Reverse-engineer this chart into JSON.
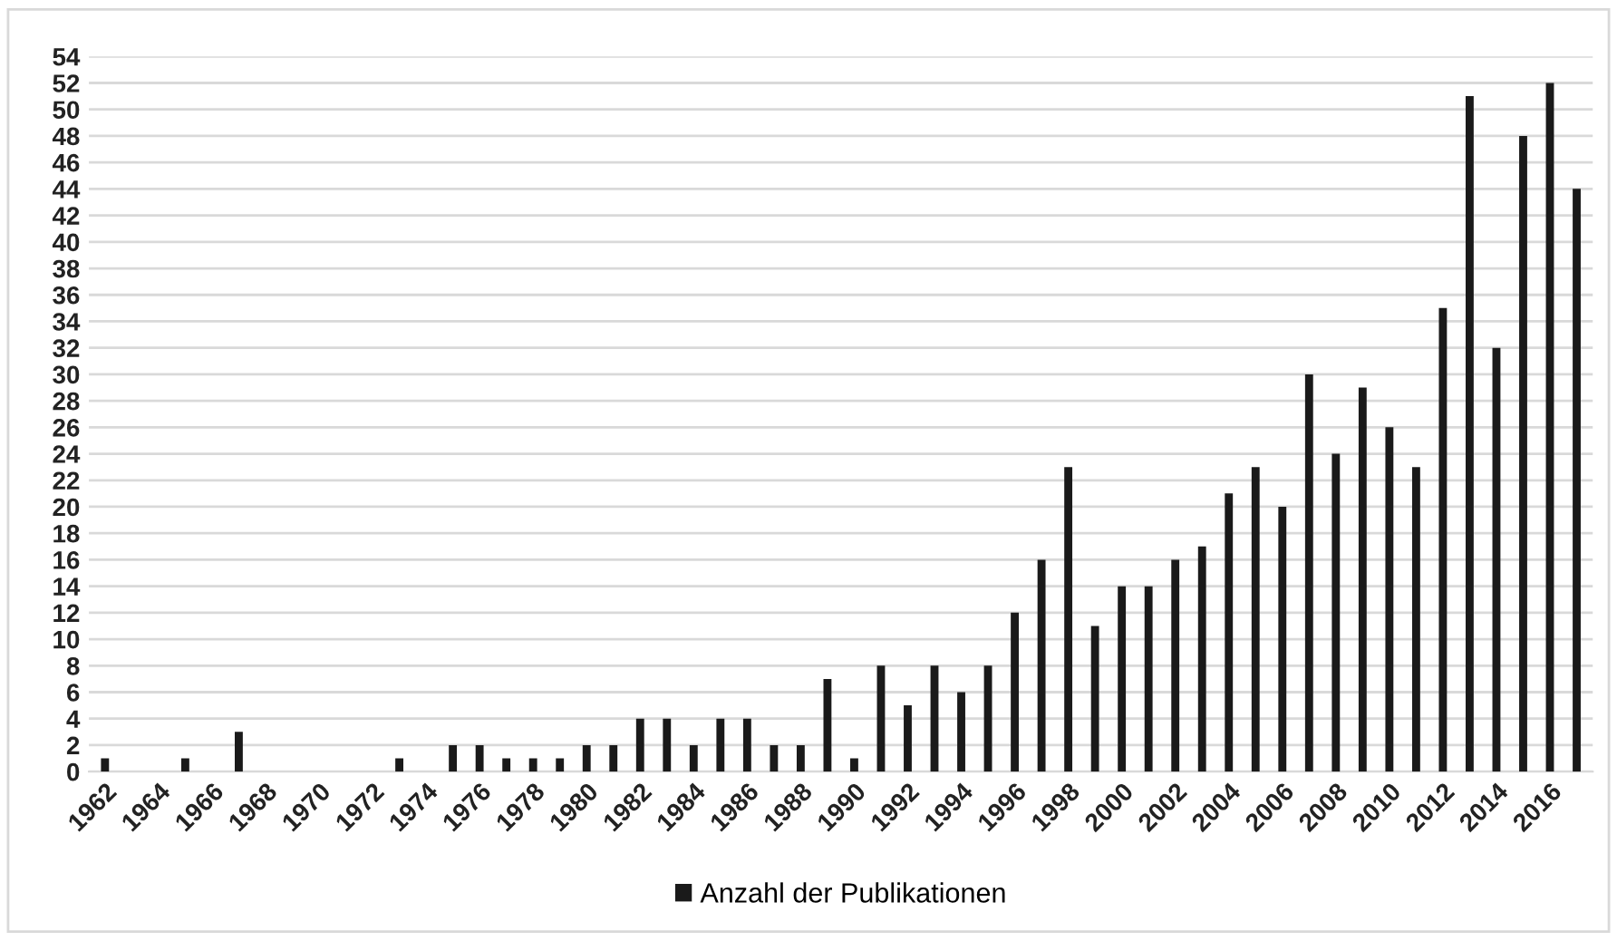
{
  "chart_data": {
    "type": "bar",
    "categories": [
      "1962",
      null,
      "1964",
      null,
      "1966",
      null,
      "1968",
      null,
      "1970",
      null,
      "1972",
      null,
      "1974",
      null,
      "1976",
      null,
      "1978",
      null,
      "1980",
      null,
      "1982",
      null,
      "1984",
      null,
      "1986",
      null,
      "1988",
      null,
      "1990",
      null,
      "1992",
      null,
      "1994",
      null,
      "1996",
      null,
      "1998",
      null,
      "2000",
      null,
      "2002",
      null,
      "2004",
      null,
      "2006",
      null,
      "2008",
      null,
      "2010",
      null,
      "2012",
      null,
      "2014",
      null,
      "2016",
      null
    ],
    "series": [
      {
        "name": "Anzahl der Publikationen",
        "color": "#1a1a1a",
        "values": [
          1,
          0,
          0,
          1,
          0,
          3,
          0,
          0,
          0,
          0,
          0,
          1,
          0,
          2,
          2,
          1,
          1,
          1,
          2,
          2,
          4,
          4,
          2,
          4,
          4,
          2,
          2,
          7,
          1,
          8,
          5,
          8,
          6,
          8,
          12,
          16,
          23,
          11,
          14,
          14,
          16,
          17,
          21,
          23,
          20,
          30,
          24,
          29,
          26,
          23,
          35,
          51,
          32,
          48,
          52,
          44
        ]
      }
    ],
    "ylim": [
      0,
      54
    ],
    "yticks": [
      0,
      2,
      4,
      6,
      8,
      10,
      12,
      14,
      16,
      18,
      20,
      22,
      24,
      26,
      28,
      30,
      32,
      34,
      36,
      38,
      40,
      42,
      44,
      46,
      48,
      50,
      52,
      54
    ],
    "grid": "y",
    "legend": "bottom"
  }
}
